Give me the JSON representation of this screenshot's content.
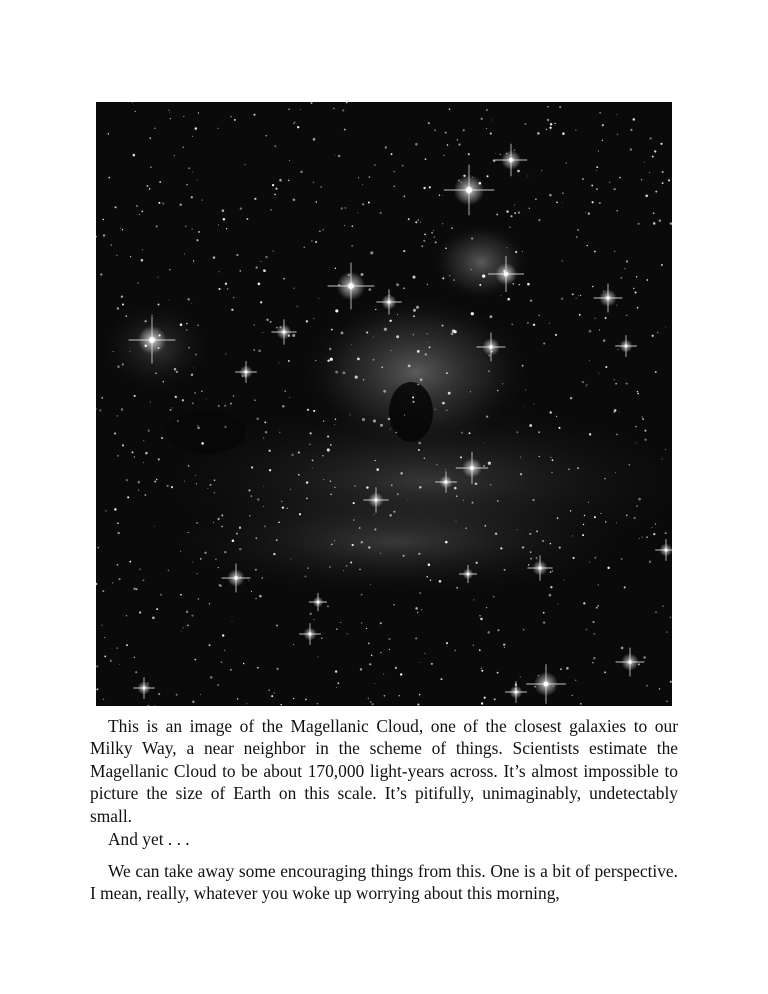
{
  "figure": {
    "subject": "star-field-photograph"
  },
  "paragraphs": [
    "This is an image of the Magellanic Cloud, one of the closest galaxies to our Milky Way, a near neighbor in the scheme of things. Scientists estimate the Magellanic Cloud to be about 170,000 light-years across. It’s almost impossible to picture the size of Earth on this scale. It’s pitifully, unimaginably, undetectably small.",
    "And yet . . .",
    "We can take away some encouraging things from this. One is a bit of perspective. I mean, really, whatever you woke up worrying about this morning,"
  ]
}
